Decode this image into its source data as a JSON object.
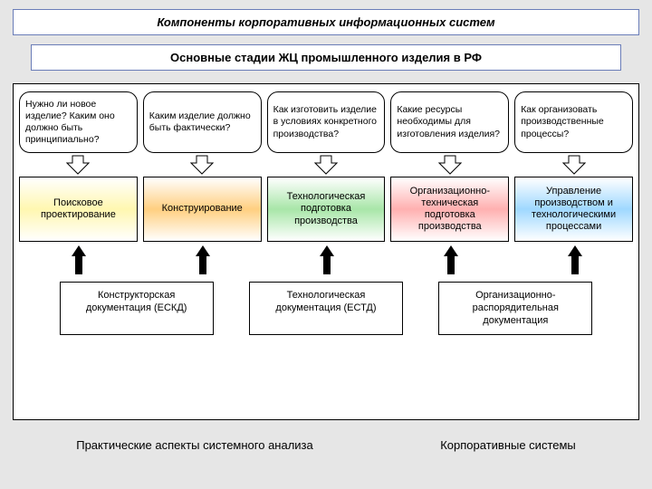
{
  "title": "Компоненты корпоративных информационных систем",
  "subtitle": "Основные стадии ЖЦ промышленного изделия в РФ",
  "questions": [
    "Нужно ли новое изделие? Каким оно должно быть принципиально?",
    "Каким изделие должно быть фактически?",
    "Как изготовить изделие в условиях конкретного производства?",
    "Какие ресурсы необходимы для изготовления изделия?",
    "Как организовать производственные процессы?"
  ],
  "stages": [
    {
      "label": "Поисковое проектирование",
      "grad": "grad-yellow"
    },
    {
      "label": "Конструирование",
      "grad": "grad-orange"
    },
    {
      "label": "Технологическая подготовка производства",
      "grad": "grad-green"
    },
    {
      "label": "Организационно-техническая подготовка производства",
      "grad": "grad-red"
    },
    {
      "label": "Управление производством и технологическими процессами",
      "grad": "grad-blue"
    }
  ],
  "docs": [
    "Конструкторская документация (ЕСКД)",
    "Технологическая документация (ЕСТД)",
    "Организационно-распорядительная документация"
  ],
  "footer_left": "Практические аспекты системного анализа",
  "footer_right": "Корпоративные системы",
  "colors": {
    "frame_border": "#6a7db8",
    "bg": "#e6e6e6"
  },
  "arrows": {
    "down_width": 26,
    "down_height": 22,
    "up_width": 16,
    "up_height": 32
  },
  "up_arrow_targets": [
    {
      "doc": 0,
      "stage": 0
    },
    {
      "doc": 0,
      "stage": 1
    },
    {
      "doc": 1,
      "stage": 2
    },
    {
      "doc": 1,
      "stage": 3
    },
    {
      "doc": 2,
      "stage": 4
    }
  ]
}
